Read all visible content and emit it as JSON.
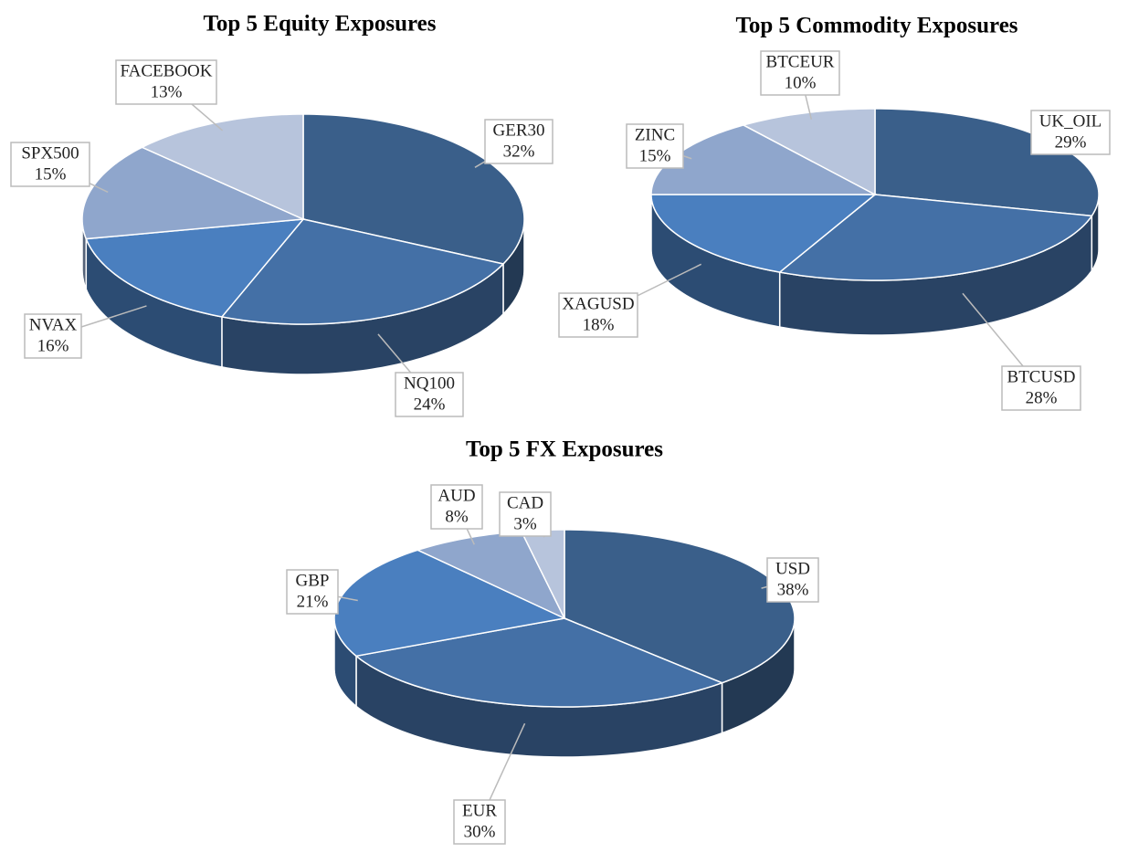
{
  "chart_data": [
    {
      "type": "pie",
      "title": "Top 5 Equity Exposures",
      "categories": [
        "GER30",
        "NQ100",
        "NVAX",
        "SPX500",
        "FACEBOOK"
      ],
      "values": [
        32,
        24,
        16,
        15,
        13
      ],
      "value_labels": [
        "32%",
        "24%",
        "16%",
        "15%",
        "13%"
      ],
      "colors": [
        "#3a5f8a",
        "#4470a6",
        "#4a7fbf",
        "#8fa6cc",
        "#b7c4dc"
      ]
    },
    {
      "type": "pie",
      "title": "Top 5 Commodity Exposures",
      "categories": [
        "UK_OIL",
        "BTCUSD",
        "XAGUSD",
        "ZINC",
        "BTCEUR"
      ],
      "values": [
        29,
        28,
        18,
        15,
        10
      ],
      "value_labels": [
        "29%",
        "28%",
        "18%",
        "15%",
        "10%"
      ],
      "colors": [
        "#3a5f8a",
        "#4470a6",
        "#4a7fbf",
        "#8fa6cc",
        "#b7c4dc"
      ]
    },
    {
      "type": "pie",
      "title": "Top 5 FX Exposures",
      "categories": [
        "USD",
        "EUR",
        "GBP",
        "AUD",
        "CAD"
      ],
      "values": [
        38,
        30,
        21,
        8,
        3
      ],
      "value_labels": [
        "38%",
        "30%",
        "21%",
        "8%",
        "3%"
      ],
      "colors": [
        "#3a5f8a",
        "#4470a6",
        "#4a7fbf",
        "#8fa6cc",
        "#b7c4dc"
      ]
    }
  ]
}
